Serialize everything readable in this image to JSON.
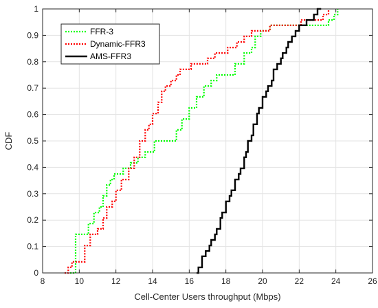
{
  "chart_data": {
    "type": "line",
    "title": "",
    "xlabel": "Cell-Center Users throughput (Mbps)",
    "ylabel": "CDF",
    "xlim": [
      8,
      26
    ],
    "ylim": [
      0,
      1
    ],
    "xticks": [
      8,
      10,
      12,
      14,
      16,
      18,
      20,
      22,
      24,
      26
    ],
    "yticks": [
      0,
      0.1,
      0.2,
      0.3,
      0.4,
      0.5,
      0.6,
      0.7,
      0.8,
      0.9,
      1
    ],
    "xtick_labels": [
      "8",
      "10",
      "12",
      "14",
      "16",
      "18",
      "20",
      "22",
      "24",
      "26"
    ],
    "ytick_labels": [
      "0",
      "0.1",
      "0.2",
      "0.3",
      "0.4",
      "0.5",
      "0.6",
      "0.7",
      "0.8",
      "0.9",
      "1"
    ],
    "grid": true,
    "legend_position": "top-left",
    "series": [
      {
        "name": "FFR-3",
        "color": "#00ff00",
        "style": "dotted",
        "x": [
          9.5,
          9.8,
          10.5,
          10.8,
          11.1,
          11.3,
          11.5,
          11.7,
          11.9,
          12.4,
          12.8,
          13.2,
          13.6,
          14.1,
          15.3,
          15.6,
          16.0,
          16.4,
          16.8,
          17.2,
          17.5,
          17.7,
          18.5,
          19.0,
          19.4,
          19.6,
          19.9,
          20.4,
          22.2,
          23.6,
          23.9,
          24.1
        ],
        "y": [
          0.0,
          0.146,
          0.187,
          0.229,
          0.25,
          0.292,
          0.333,
          0.354,
          0.375,
          0.396,
          0.417,
          0.438,
          0.458,
          0.5,
          0.542,
          0.583,
          0.625,
          0.667,
          0.708,
          0.729,
          0.75,
          0.75,
          0.792,
          0.833,
          0.854,
          0.896,
          0.917,
          0.938,
          0.938,
          0.958,
          0.979,
          1.0
        ]
      },
      {
        "name": "Dynamic-FFR3",
        "color": "#ff0000",
        "style": "dotted",
        "x": [
          9.2,
          9.4,
          9.6,
          10.3,
          10.6,
          11.0,
          11.3,
          11.5,
          11.8,
          12.0,
          12.3,
          12.7,
          13.0,
          13.3,
          13.6,
          13.8,
          14.0,
          14.3,
          14.5,
          14.7,
          15.0,
          15.3,
          15.5,
          15.8,
          16.1,
          17.0,
          17.4,
          18.1,
          18.6,
          19.0,
          19.4,
          19.7,
          20.4,
          21.0,
          22.1,
          22.3,
          23.3,
          23.6
        ],
        "y": [
          0.0,
          0.021,
          0.042,
          0.104,
          0.146,
          0.167,
          0.208,
          0.25,
          0.271,
          0.313,
          0.354,
          0.396,
          0.438,
          0.5,
          0.542,
          0.563,
          0.604,
          0.646,
          0.688,
          0.708,
          0.729,
          0.75,
          0.771,
          0.771,
          0.792,
          0.813,
          0.833,
          0.854,
          0.875,
          0.896,
          0.917,
          0.917,
          0.938,
          0.938,
          0.958,
          0.958,
          0.979,
          1.0
        ]
      },
      {
        "name": "AMS-FFR3",
        "color": "#000000",
        "style": "solid",
        "x": [
          16.4,
          16.5,
          16.7,
          16.9,
          17.1,
          17.2,
          17.4,
          17.5,
          17.7,
          17.8,
          18.0,
          18.2,
          18.3,
          18.5,
          18.7,
          18.8,
          19.0,
          19.1,
          19.2,
          19.4,
          19.5,
          19.7,
          19.8,
          20.0,
          20.2,
          20.3,
          20.5,
          20.6,
          20.8,
          21.0,
          21.1,
          21.3,
          21.4,
          21.6,
          21.8,
          22.0,
          22.2,
          22.4,
          22.6,
          22.8,
          23.0,
          23.2
        ],
        "y": [
          0.0,
          0.021,
          0.063,
          0.083,
          0.104,
          0.125,
          0.146,
          0.167,
          0.208,
          0.229,
          0.271,
          0.292,
          0.313,
          0.354,
          0.375,
          0.396,
          0.438,
          0.458,
          0.5,
          0.521,
          0.563,
          0.604,
          0.625,
          0.667,
          0.688,
          0.708,
          0.729,
          0.771,
          0.792,
          0.813,
          0.833,
          0.854,
          0.875,
          0.896,
          0.917,
          0.938,
          0.938,
          0.958,
          0.958,
          0.979,
          1.0,
          1.0
        ]
      }
    ]
  }
}
